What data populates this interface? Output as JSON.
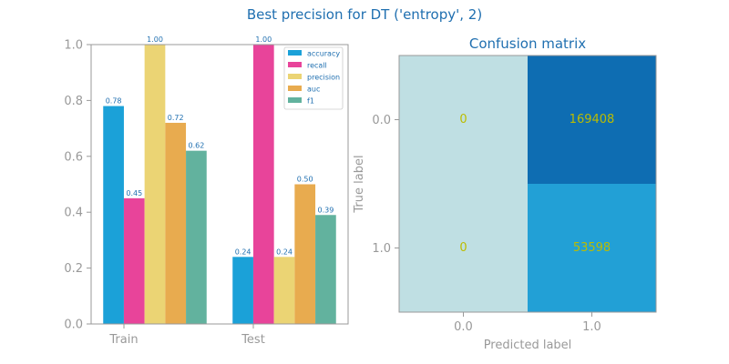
{
  "figure": {
    "suptitle": "Best precision for DT ('entropy', 2)"
  },
  "chart_data": [
    {
      "type": "bar",
      "title": "",
      "xlabel": "",
      "ylabel": "",
      "categories": [
        "Train",
        "Test"
      ],
      "ylim": [
        0,
        1
      ],
      "y_ticks": [
        "0.0",
        "0.2",
        "0.4",
        "0.6",
        "0.8",
        "1.0"
      ],
      "legend_position": "top-right",
      "series": [
        {
          "name": "accuracy",
          "color": "#1ba1d8",
          "values": [
            0.78,
            0.24
          ],
          "labels": [
            "0.78",
            "0.24"
          ]
        },
        {
          "name": "recall",
          "color": "#e8449a",
          "values": [
            0.45,
            1.0
          ],
          "labels": [
            "0.45",
            "1.00"
          ]
        },
        {
          "name": "precision",
          "color": "#ebd474",
          "values": [
            1.0,
            0.24
          ],
          "labels": [
            "1.00",
            "0.24"
          ]
        },
        {
          "name": "auc",
          "color": "#e8ab4f",
          "values": [
            0.72,
            0.5
          ],
          "labels": [
            "0.72",
            "0.50"
          ]
        },
        {
          "name": "f1",
          "color": "#62b29e",
          "values": [
            0.62,
            0.39
          ],
          "labels": [
            "0.62",
            "0.39"
          ]
        }
      ],
      "value_label_color": "#1f6fb0",
      "axis_color": "#999999"
    },
    {
      "type": "heatmap",
      "title": "Confusion matrix",
      "xlabel": "Predicted label",
      "ylabel": "True label",
      "x_categories": [
        "0.0",
        "1.0"
      ],
      "y_categories": [
        "0.0",
        "1.0"
      ],
      "values": [
        [
          0,
          169408
        ],
        [
          0,
          53598
        ]
      ],
      "cell_colors": [
        [
          "#bfdfe3",
          "#0e6db2"
        ],
        [
          "#bfdfe3",
          "#22a0d6"
        ]
      ],
      "annotation_color": "#bcbc00"
    }
  ],
  "colors": {
    "title": "#1f6fb0",
    "axis_text": "#999999"
  }
}
